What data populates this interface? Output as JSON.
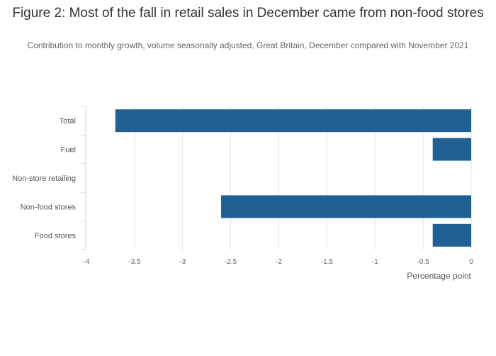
{
  "chart_data": {
    "type": "bar",
    "orientation": "horizontal",
    "title": "Figure 2: Most of the fall in retail sales in December came from non-food stores",
    "subtitle": "Contribution to monthly growth, volume seasonally adjusted, Great Britain, December compared with November 2021",
    "categories": [
      "Total",
      "Fuel",
      "Non-store retailing",
      "Non-food stores",
      "Food stores"
    ],
    "values": [
      -3.7,
      -0.4,
      0,
      -2.6,
      -0.4
    ],
    "xlabel": "Percentage point",
    "ylabel": "",
    "xlim": [
      -4,
      0
    ],
    "xticks": [
      -4,
      -3.5,
      -3,
      -2.5,
      -2,
      -1.5,
      -1,
      -0.5,
      0
    ],
    "xtick_labels": [
      "-4",
      "-3.5",
      "-3",
      "-2.5",
      "-2",
      "-1.5",
      "-1",
      "-0.5",
      "0"
    ],
    "grid": true,
    "bar_color": "#206095"
  }
}
